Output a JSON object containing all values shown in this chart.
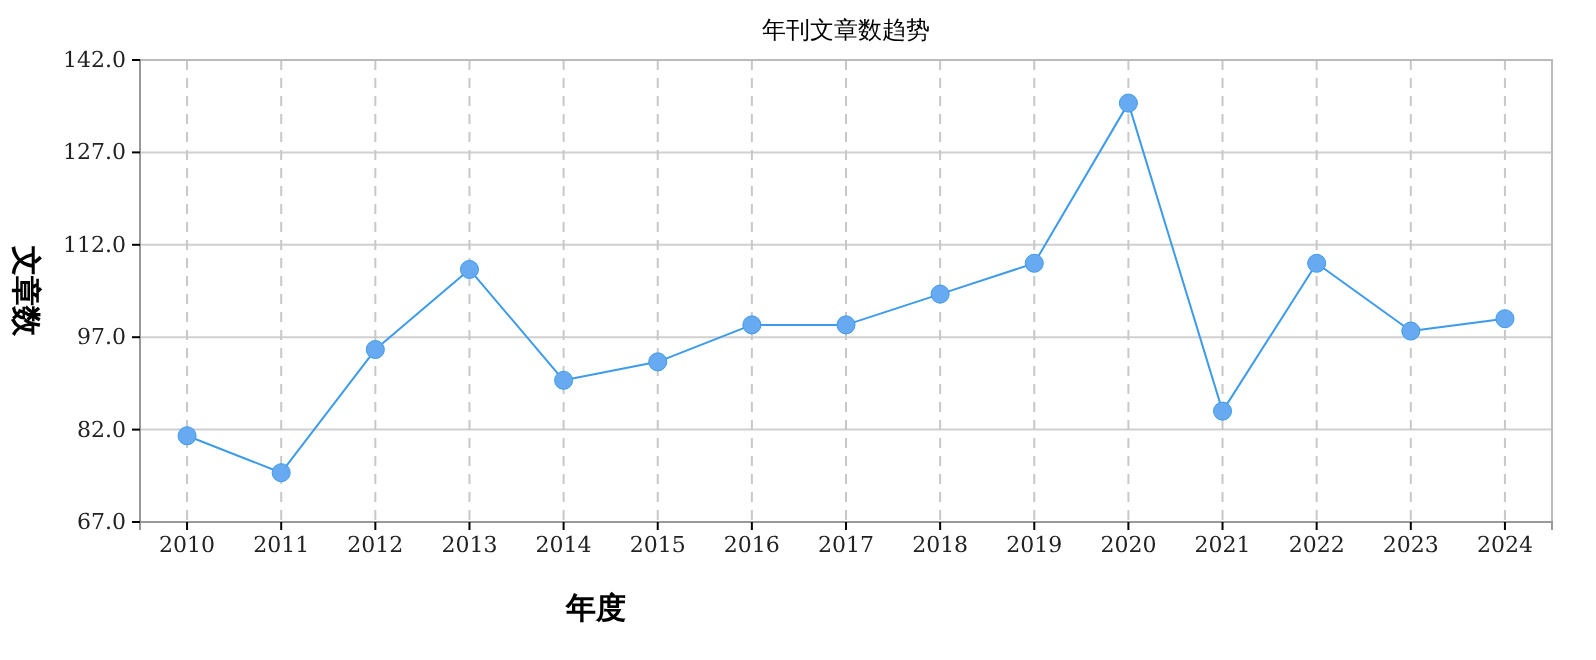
{
  "chart_data": {
    "type": "line",
    "title": "年刊文章数趋势",
    "xlabel": "年度",
    "ylabel": "文章数",
    "categories": [
      "2010",
      "2011",
      "2012",
      "2013",
      "2014",
      "2015",
      "2016",
      "2017",
      "2018",
      "2019",
      "2020",
      "2021",
      "2022",
      "2023",
      "2024"
    ],
    "series": [
      {
        "color": "#3d9be9",
        "values": [
          81,
          75,
          95,
          108,
          90,
          93,
          99,
          99,
          104,
          109,
          135,
          85,
          109,
          98,
          100
        ]
      }
    ],
    "ylim": [
      67,
      142
    ],
    "yticks": [
      {
        "value": 67,
        "label": "67.0"
      },
      {
        "value": 82,
        "label": "82.0"
      },
      {
        "value": 97,
        "label": "97.0"
      },
      {
        "value": 112,
        "label": "112.0"
      },
      {
        "value": 127,
        "label": "127.0"
      },
      {
        "value": 142,
        "label": "142.0"
      }
    ],
    "grid": true,
    "marker": "circle",
    "line_style": "solid"
  }
}
